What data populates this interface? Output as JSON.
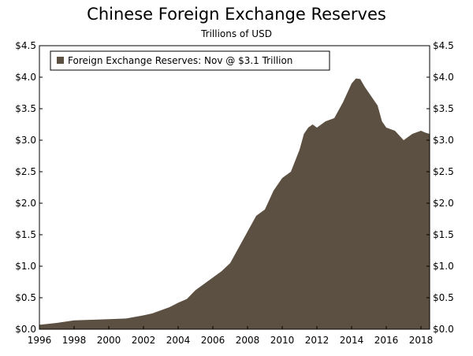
{
  "chart_data": {
    "type": "area",
    "title": "Chinese Foreign Exchange Reserves",
    "subtitle": "Trillions of USD",
    "legend": {
      "label": "Foreign Exchange Reserves: Nov @ $3.1 Trillion",
      "placement": "top-left"
    },
    "xlim": [
      1996,
      2018.5
    ],
    "ylim": [
      0,
      4.5
    ],
    "x_ticks": [
      1996,
      1998,
      2000,
      2002,
      2004,
      2006,
      2008,
      2010,
      2012,
      2014,
      2016,
      2018
    ],
    "x_tick_labels": [
      "1996",
      "1998",
      "2000",
      "2002",
      "2004",
      "2006",
      "2008",
      "2010",
      "2012",
      "2014",
      "2016",
      "2018"
    ],
    "y_ticks": [
      0,
      0.5,
      1.0,
      1.5,
      2.0,
      2.5,
      3.0,
      3.5,
      4.0,
      4.5
    ],
    "y_tick_labels": [
      "$0.0",
      "$0.5",
      "$1.0",
      "$1.5",
      "$2.0",
      "$2.5",
      "$3.0",
      "$3.5",
      "$4.0",
      "$4.5"
    ],
    "grid": false,
    "fill_color": "#5c5042",
    "series": [
      {
        "name": "Foreign Exchange Reserves: Nov @ $3.1 Trillion",
        "x": [
          1996.0,
          1997.0,
          1998.0,
          1999.0,
          2000.0,
          2001.0,
          2002.0,
          2002.5,
          2003.0,
          2003.5,
          2004.0,
          2004.5,
          2005.0,
          2005.5,
          2006.0,
          2006.5,
          2007.0,
          2007.5,
          2008.0,
          2008.5,
          2009.0,
          2009.5,
          2010.0,
          2010.5,
          2011.0,
          2011.25,
          2011.5,
          2011.75,
          2012.0,
          2012.5,
          2013.0,
          2013.5,
          2014.0,
          2014.25,
          2014.5,
          2014.75,
          2015.0,
          2015.25,
          2015.5,
          2015.75,
          2016.0,
          2016.5,
          2017.0,
          2017.5,
          2018.0,
          2018.25,
          2018.5
        ],
        "values": [
          0.07,
          0.1,
          0.14,
          0.15,
          0.16,
          0.17,
          0.22,
          0.25,
          0.3,
          0.35,
          0.42,
          0.48,
          0.62,
          0.72,
          0.82,
          0.92,
          1.05,
          1.3,
          1.55,
          1.8,
          1.9,
          2.2,
          2.4,
          2.5,
          2.85,
          3.1,
          3.2,
          3.25,
          3.2,
          3.3,
          3.35,
          3.6,
          3.9,
          3.98,
          3.97,
          3.85,
          3.75,
          3.65,
          3.55,
          3.3,
          3.2,
          3.15,
          3.0,
          3.1,
          3.15,
          3.12,
          3.1
        ]
      }
    ]
  }
}
